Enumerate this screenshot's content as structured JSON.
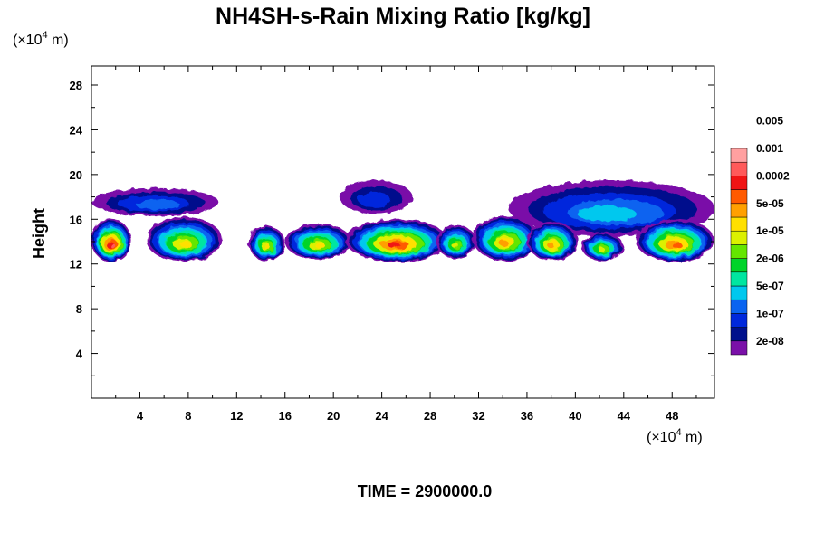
{
  "chart_data": {
    "type": "heatmap",
    "title": "NH4SH-s-Rain Mixing Ratio [kg/kg]",
    "ylabel": "Height",
    "x_unit": "(×10⁴ m)",
    "y_unit": "(×10⁴ m)",
    "x_unit_prefix": "(×10",
    "x_unit_exp": "4",
    "x_unit_suffix": " m)",
    "y_unit_prefix": "(×10",
    "y_unit_exp": "4",
    "y_unit_suffix": " m)",
    "xlim": [
      0,
      51.5
    ],
    "ylim": [
      0,
      29.7
    ],
    "x_ticks": [
      4,
      8,
      12,
      16,
      20,
      24,
      28,
      32,
      36,
      40,
      44,
      48
    ],
    "y_ticks": [
      4,
      8,
      12,
      16,
      20,
      24,
      28
    ],
    "grid": false,
    "colorbar": {
      "placement": "right",
      "levels": [
        "2e-08",
        "1e-07",
        "5e-07",
        "2e-06",
        "1e-05",
        "5e-05",
        "0.0002",
        "0.001",
        "0.005"
      ],
      "colors": [
        "#7a10a8",
        "#00108c",
        "#0028dc",
        "#0a64f0",
        "#00c8ee",
        "#00e6a0",
        "#00d42a",
        "#64e600",
        "#dcf000",
        "#ffe000",
        "#ffa000",
        "#ff5a00",
        "#f01414",
        "#ff5a5a",
        "#ffa0a0"
      ]
    },
    "fields": [
      {
        "name": "upper_left_layer",
        "x_range": [
          0,
          10.5
        ],
        "y_range": [
          16.3,
          18.8
        ],
        "peak_level": 3
      },
      {
        "name": "upper_mid_patch",
        "x_range": [
          20.5,
          26.5
        ],
        "y_range": [
          16.5,
          19.5
        ],
        "peak_level": 2
      },
      {
        "name": "upper_right_layer",
        "x_range": [
          34.5,
          51.5
        ],
        "y_range": [
          14.5,
          19.5
        ],
        "peak_level": 4
      },
      {
        "name": "cloud_left_edge",
        "x_range": [
          0,
          3.3
        ],
        "y_range": [
          12.2,
          16.0
        ],
        "peak_level": 13
      },
      {
        "name": "cloud_x5_10",
        "x_range": [
          4.5,
          10.8
        ],
        "y_range": [
          12.2,
          16.2
        ],
        "peak_level": 9
      },
      {
        "name": "cloud_x13_16",
        "x_range": [
          13.0,
          16.0
        ],
        "y_range": [
          12.3,
          15.4
        ],
        "peak_level": 9
      },
      {
        "name": "cloud_x17_21",
        "x_range": [
          16.0,
          21.5
        ],
        "y_range": [
          12.4,
          15.6
        ],
        "peak_level": 9
      },
      {
        "name": "cloud_x21_29",
        "x_range": [
          21.0,
          29.5
        ],
        "y_range": [
          12.2,
          16.0
        ],
        "peak_level": 12
      },
      {
        "name": "cloud_x29_32",
        "x_range": [
          28.5,
          31.8
        ],
        "y_range": [
          12.5,
          15.5
        ],
        "peak_level": 8
      },
      {
        "name": "cloud_x32_37",
        "x_range": [
          31.5,
          37.0
        ],
        "y_range": [
          12.3,
          16.3
        ],
        "peak_level": 10
      },
      {
        "name": "cloud_x36_40",
        "x_range": [
          36.0,
          40.2
        ],
        "y_range": [
          12.3,
          15.8
        ],
        "peak_level": 10
      },
      {
        "name": "cloud_x41_44",
        "x_range": [
          40.5,
          44.0
        ],
        "y_range": [
          12.3,
          14.8
        ],
        "peak_level": 8
      },
      {
        "name": "cloud_x45_51",
        "x_range": [
          45.0,
          51.5
        ],
        "y_range": [
          12.2,
          16.0
        ],
        "peak_level": 11
      }
    ]
  },
  "time_label": "TIME = 2900000.0"
}
